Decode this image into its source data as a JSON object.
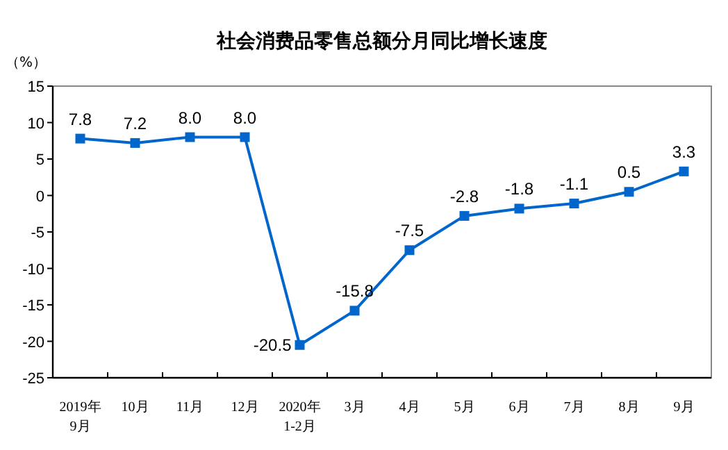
{
  "chart_data": {
    "type": "line",
    "title": "社会消费品零售总额分月同比增长速度",
    "ylabel": "（%）",
    "categories": [
      "2019年\n9月",
      "10月",
      "11月",
      "12月",
      "2020年\n1-2月",
      "3月",
      "4月",
      "5月",
      "6月",
      "7月",
      "8月",
      "9月"
    ],
    "series": [
      {
        "color": "#0066cc",
        "values": [
          7.8,
          7.2,
          8.0,
          8.0,
          -20.5,
          -15.8,
          -7.5,
          -2.8,
          -1.8,
          -1.1,
          0.5,
          3.3
        ],
        "value_labels": [
          "7.8",
          "7.2",
          "8.0",
          "8.0",
          "-20.5",
          "-15.8",
          "-7.5",
          "-2.8",
          "-1.8",
          "-1.1",
          "0.5",
          "3.3"
        ]
      }
    ],
    "ylim": [
      -25,
      15
    ],
    "yticks": [
      -25,
      -20,
      -15,
      -10,
      -5,
      0,
      5,
      10,
      15
    ],
    "marker": "square",
    "grid": false
  }
}
